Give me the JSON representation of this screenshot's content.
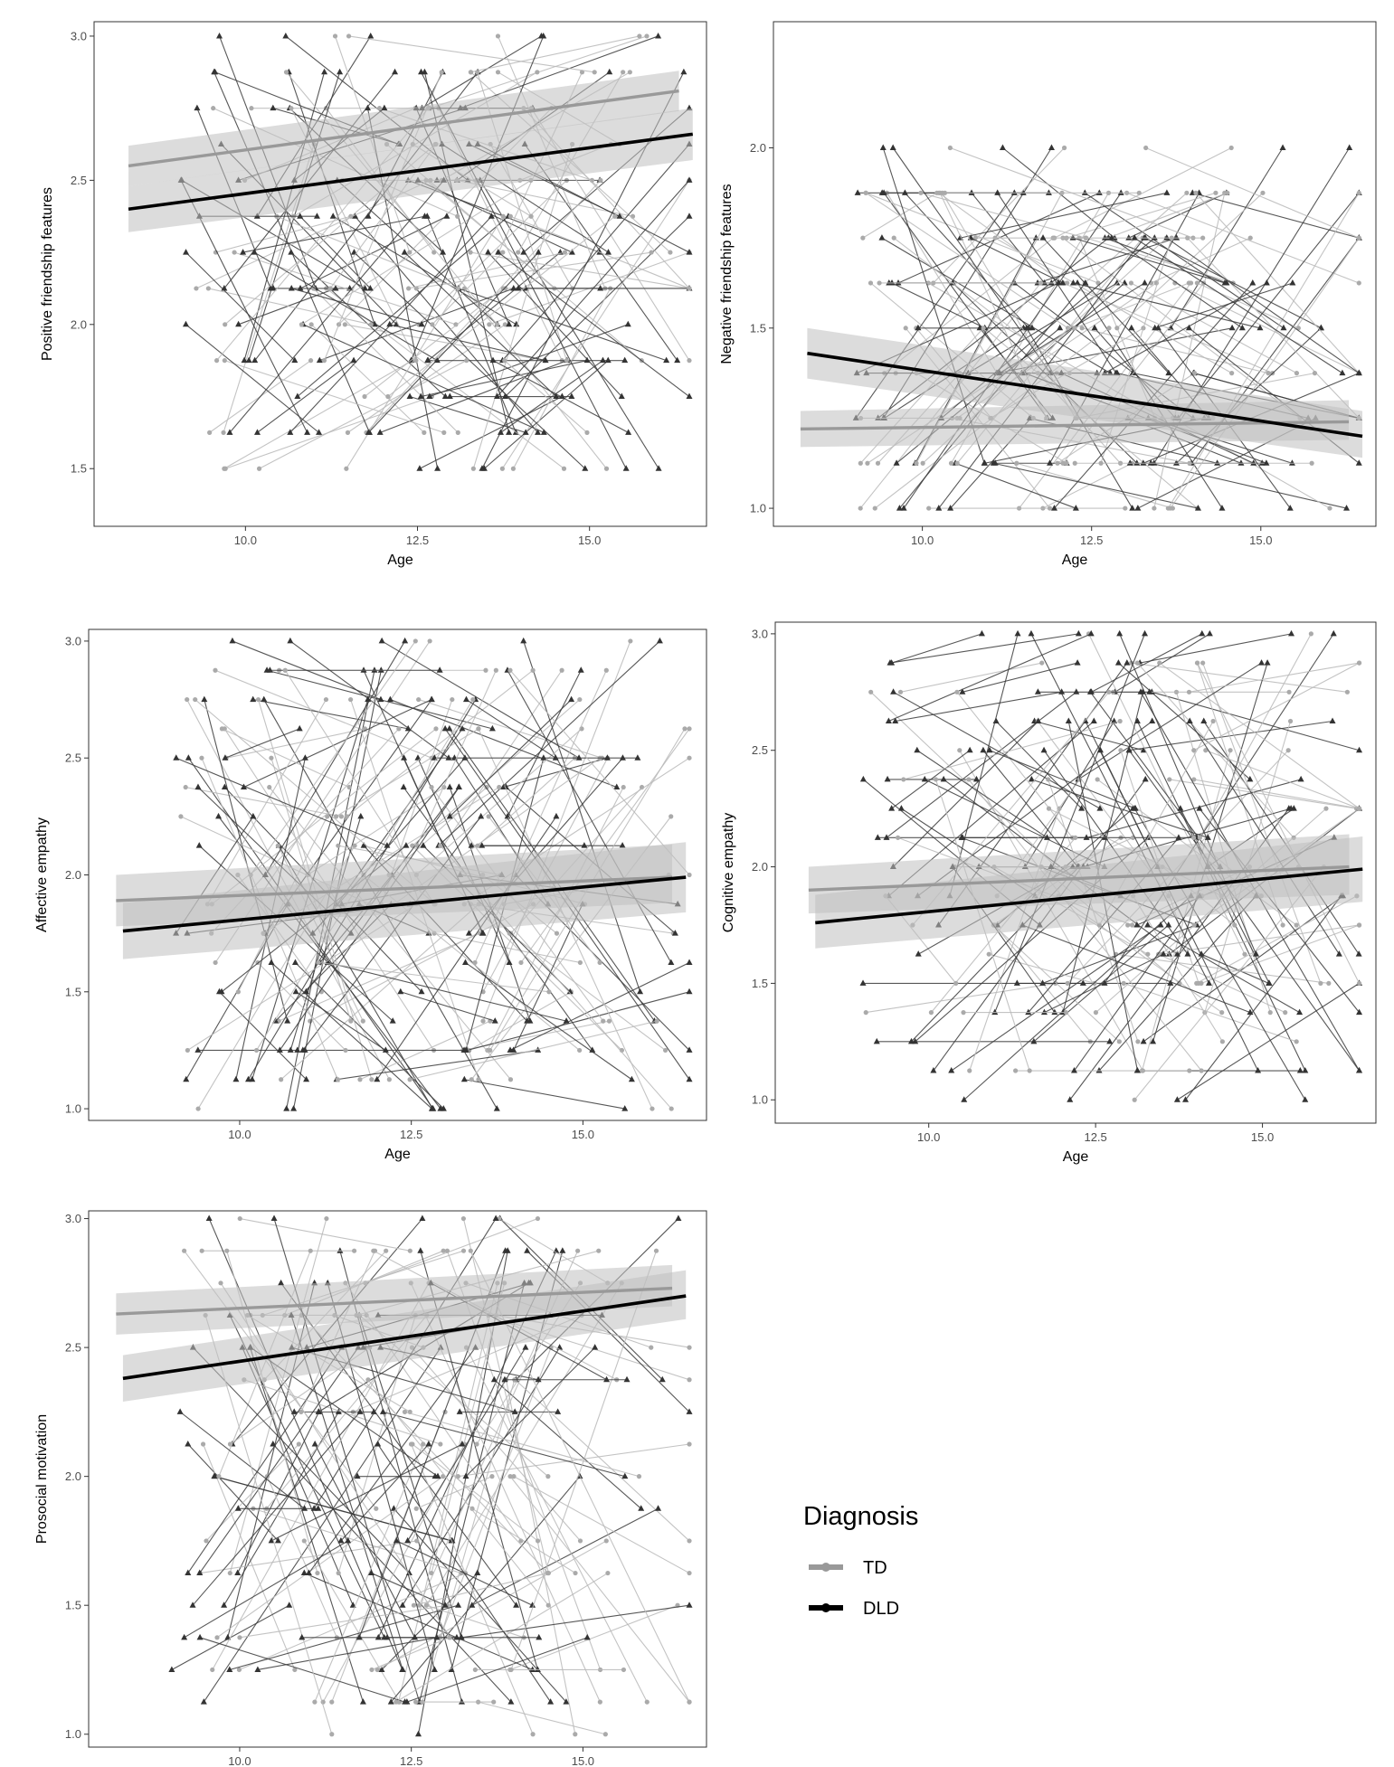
{
  "chart_data": [
    {
      "type": "line",
      "ylabel": "Positive friendship features",
      "xlabel": "Age",
      "xlim": [
        7.8,
        16.7
      ],
      "ylim": [
        1.3,
        3.05
      ],
      "x_ticks": [
        "10.0",
        "12.5",
        "15.0"
      ],
      "y_ticks": [
        "1.5",
        "2.0",
        "2.5",
        "3.0"
      ],
      "grid": false,
      "series": [
        {
          "name": "TD",
          "color": "#999999",
          "x": [
            8.3,
            16.3
          ],
          "y": [
            2.55,
            2.81
          ],
          "ci_low": [
            2.48,
            2.74
          ],
          "ci_high": [
            2.62,
            2.88
          ]
        },
        {
          "name": "DLD",
          "color": "#000000",
          "x": [
            8.3,
            16.5
          ],
          "y": [
            2.4,
            2.66
          ],
          "ci_low": [
            2.32,
            2.57
          ],
          "ci_high": [
            2.48,
            2.75
          ]
        }
      ]
    },
    {
      "type": "line",
      "ylabel": "Negative friendship features",
      "xlabel": "Age",
      "xlim": [
        7.8,
        16.7
      ],
      "ylim": [
        0.95,
        2.35
      ],
      "x_ticks": [
        "10.0",
        "12.5",
        "15.0"
      ],
      "y_ticks": [
        "1.0",
        "1.5",
        "2.0"
      ],
      "grid": false,
      "series": [
        {
          "name": "TD",
          "color": "#999999",
          "x": [
            8.2,
            16.3
          ],
          "y": [
            1.22,
            1.24
          ],
          "ci_low": [
            1.17,
            1.19
          ],
          "ci_high": [
            1.27,
            1.3
          ]
        },
        {
          "name": "DLD",
          "color": "#000000",
          "x": [
            8.3,
            16.5
          ],
          "y": [
            1.43,
            1.2
          ],
          "ci_low": [
            1.36,
            1.14
          ],
          "ci_high": [
            1.5,
            1.27
          ]
        }
      ]
    },
    {
      "type": "line",
      "ylabel": "Affective empathy",
      "xlabel": "Age",
      "xlim": [
        7.8,
        16.8
      ],
      "ylim": [
        0.95,
        3.05
      ],
      "x_ticks": [
        "10.0",
        "12.5",
        "15.0"
      ],
      "y_ticks": [
        "1.0",
        "1.5",
        "2.0",
        "2.5",
        "3.0"
      ],
      "grid": false,
      "series": [
        {
          "name": "TD",
          "color": "#999999",
          "x": [
            8.2,
            16.3
          ],
          "y": [
            1.89,
            1.99
          ],
          "ci_low": [
            1.78,
            1.88
          ],
          "ci_high": [
            2.0,
            2.13
          ]
        },
        {
          "name": "DLD",
          "color": "#000000",
          "x": [
            8.3,
            16.5
          ],
          "y": [
            1.76,
            1.99
          ],
          "ci_low": [
            1.64,
            1.84
          ],
          "ci_high": [
            1.88,
            2.14
          ]
        }
      ]
    },
    {
      "type": "line",
      "ylabel": "Cognitive empathy",
      "xlabel": "Age",
      "xlim": [
        7.7,
        16.7
      ],
      "ylim": [
        0.9,
        3.05
      ],
      "x_ticks": [
        "10.0",
        "12.5",
        "15.0"
      ],
      "y_ticks": [
        "1.0",
        "1.5",
        "2.0",
        "2.5",
        "3.0"
      ],
      "grid": false,
      "series": [
        {
          "name": "TD",
          "color": "#999999",
          "x": [
            8.2,
            16.3
          ],
          "y": [
            1.9,
            2.0
          ],
          "ci_low": [
            1.8,
            1.88
          ],
          "ci_high": [
            2.0,
            2.14
          ]
        },
        {
          "name": "DLD",
          "color": "#000000",
          "x": [
            8.3,
            16.5
          ],
          "y": [
            1.76,
            1.99
          ],
          "ci_low": [
            1.65,
            1.85
          ],
          "ci_high": [
            1.88,
            2.13
          ]
        }
      ]
    },
    {
      "type": "line",
      "ylabel": "Prosocial motivation",
      "xlabel": "",
      "xlim": [
        7.8,
        16.8
      ],
      "ylim": [
        0.95,
        3.03
      ],
      "x_ticks": [
        "10.0",
        "12.5",
        "15.0"
      ],
      "y_ticks": [
        "1.0",
        "1.5",
        "2.0",
        "2.5",
        "3.0"
      ],
      "grid": false,
      "series": [
        {
          "name": "TD",
          "color": "#999999",
          "x": [
            8.2,
            16.3
          ],
          "y": [
            2.63,
            2.73
          ],
          "ci_low": [
            2.55,
            2.66
          ],
          "ci_high": [
            2.71,
            2.82
          ]
        },
        {
          "name": "DLD",
          "color": "#000000",
          "x": [
            8.3,
            16.5
          ],
          "y": [
            2.38,
            2.7
          ],
          "ci_low": [
            2.29,
            2.61
          ],
          "ci_high": [
            2.47,
            2.8
          ]
        }
      ]
    }
  ],
  "legend": {
    "title": "Diagnosis",
    "items": [
      {
        "label": "TD",
        "color": "#999999"
      },
      {
        "label": "DLD",
        "color": "#000000"
      }
    ]
  }
}
